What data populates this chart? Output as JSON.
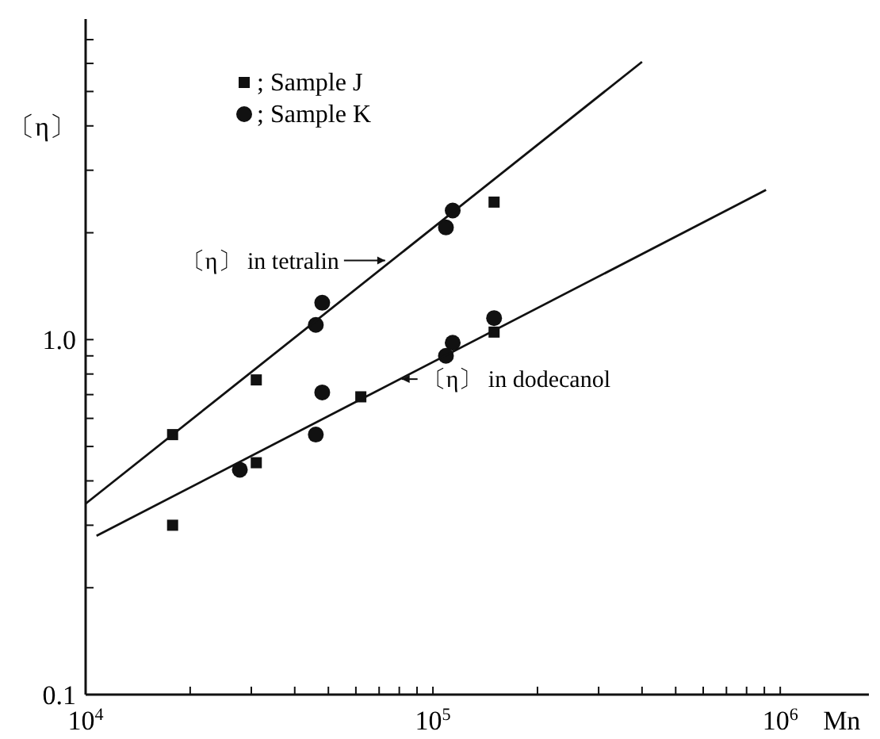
{
  "chart_data": {
    "type": "scatter",
    "ylabel": "〔η〕",
    "xlabel": "Mn",
    "log": "xy",
    "grid": false,
    "legend": "top left",
    "xlim": [
      10000,
      1800000
    ],
    "ylim": [
      0.1,
      8
    ],
    "xticks": [
      {
        "value": 10000,
        "label": "10$^{4}$"
      },
      {
        "value": 20000,
        "label": null
      },
      {
        "value": 30000,
        "label": null
      },
      {
        "value": 40000,
        "label": null
      },
      {
        "value": 50000,
        "label": null
      },
      {
        "value": 60000,
        "label": null
      },
      {
        "value": 70000,
        "label": null
      },
      {
        "value": 80000,
        "label": null
      },
      {
        "value": 90000,
        "label": null
      },
      {
        "value": 100000,
        "label": "10$^{5}$"
      },
      {
        "value": 200000,
        "label": null
      },
      {
        "value": 300000,
        "label": null
      },
      {
        "value": 400000,
        "label": null
      },
      {
        "value": 500000,
        "label": null
      },
      {
        "value": 600000,
        "label": null
      },
      {
        "value": 700000,
        "label": null
      },
      {
        "value": 800000,
        "label": null
      },
      {
        "value": 900000,
        "label": null
      },
      {
        "value": 1000000,
        "label": "10$^{6}$"
      }
    ],
    "yticks": [
      {
        "value": 0.1,
        "label": "0.1"
      },
      {
        "value": 0.2,
        "label": null
      },
      {
        "value": 0.3,
        "label": null
      },
      {
        "value": 0.4,
        "label": null
      },
      {
        "value": 0.5,
        "label": null
      },
      {
        "value": 0.6,
        "label": null
      },
      {
        "value": 0.7,
        "label": null
      },
      {
        "value": 0.8,
        "label": null
      },
      {
        "value": 0.9,
        "label": null
      },
      {
        "value": 1,
        "label": "1.0"
      },
      {
        "value": 2,
        "label": null
      },
      {
        "value": 3,
        "label": null
      },
      {
        "value": 4,
        "label": null
      },
      {
        "value": 5,
        "label": null
      },
      {
        "value": 6,
        "label": null
      },
      {
        "value": 7,
        "label": null
      }
    ],
    "series": [
      {
        "name": "; Sample J",
        "color": "#111111",
        "marker": "square",
        "x": [
          17800,
          17800,
          31000,
          31000,
          62000,
          150000,
          150000
        ],
        "values": [
          0.54,
          0.3,
          0.77,
          0.45,
          0.69,
          2.44,
          1.05
        ]
      },
      {
        "name": "; Sample K",
        "color": "#111111",
        "marker": "circle",
        "x": [
          27800,
          46000,
          48000,
          46000,
          48000,
          114000,
          109000,
          114000,
          109000,
          150000
        ],
        "values": [
          0.43,
          0.54,
          0.71,
          1.1,
          1.27,
          2.31,
          2.07,
          0.98,
          0.9,
          1.15
        ]
      },
      {
        "type": "line",
        "color": "#111111",
        "marker": "none",
        "line_style": "solid",
        "x": [
          10000,
          400000
        ],
        "values": [
          0.345,
          6.06
        ]
      },
      {
        "type": "line",
        "color": "#111111",
        "marker": "none",
        "line_style": "solid",
        "x": [
          10750,
          910000
        ],
        "values": [
          0.28,
          2.64
        ]
      }
    ],
    "annotations": [
      {
        "text": "〔η〕 in tetralin",
        "x": 76000,
        "y": 1.67
      },
      {
        "text": "〔η〕 in dodecanol",
        "x": 79600,
        "y": 0.774
      }
    ]
  }
}
